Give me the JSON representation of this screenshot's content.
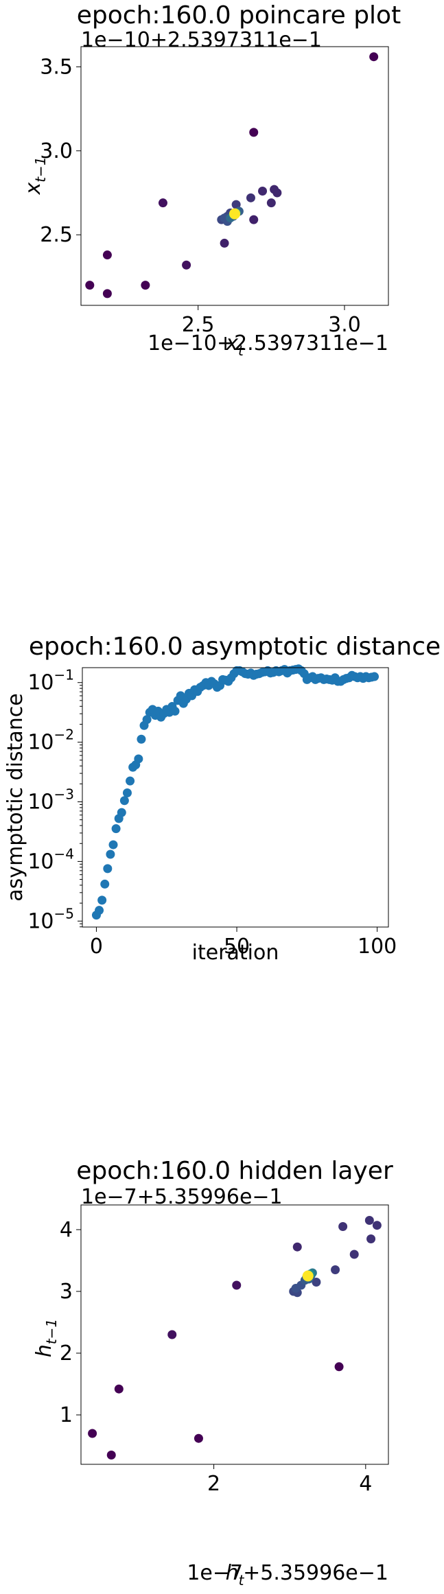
{
  "chart_data": [
    {
      "type": "scatter",
      "title": "epoch:160.0 poincare plot",
      "offset_y": "1e−10+2.5397311e−1",
      "offset_x": "1e−10+2.5397311e−1",
      "xlabel": "x_t",
      "ylabel": "x_{t−1}",
      "xlim": [
        2.1,
        3.15
      ],
      "ylim": [
        2.08,
        3.62
      ],
      "xticks": [
        2.5,
        3.0
      ],
      "xtick_labels": [
        "2.5",
        "3.0"
      ],
      "yticks": [
        2.5,
        3.0,
        3.5
      ],
      "ytick_labels": [
        "2.5",
        "3.0",
        "3.5"
      ],
      "color_scale": "viridis",
      "points": [
        {
          "x": 3.1,
          "y": 3.56,
          "c": 0
        },
        {
          "x": 2.69,
          "y": 3.11,
          "c": 0
        },
        {
          "x": 2.13,
          "y": 2.2,
          "c": 0
        },
        {
          "x": 2.19,
          "y": 2.15,
          "c": 0
        },
        {
          "x": 2.19,
          "y": 2.38,
          "c": 0
        },
        {
          "x": 2.32,
          "y": 2.2,
          "c": 0
        },
        {
          "x": 2.46,
          "y": 2.32,
          "c": 0.05
        },
        {
          "x": 2.38,
          "y": 2.69,
          "c": 0.05
        },
        {
          "x": 2.59,
          "y": 2.45,
          "c": 0.1
        },
        {
          "x": 2.69,
          "y": 2.59,
          "c": 0.1
        },
        {
          "x": 2.72,
          "y": 2.76,
          "c": 0.12
        },
        {
          "x": 2.75,
          "y": 2.69,
          "c": 0.12
        },
        {
          "x": 2.76,
          "y": 2.77,
          "c": 0.12
        },
        {
          "x": 2.77,
          "y": 2.75,
          "c": 0.12
        },
        {
          "x": 2.68,
          "y": 2.72,
          "c": 0.15
        },
        {
          "x": 2.63,
          "y": 2.68,
          "c": 0.18
        },
        {
          "x": 2.61,
          "y": 2.63,
          "c": 0.2
        },
        {
          "x": 2.6,
          "y": 2.61,
          "c": 0.22
        },
        {
          "x": 2.58,
          "y": 2.59,
          "c": 0.22
        },
        {
          "x": 2.59,
          "y": 2.6,
          "c": 0.25
        },
        {
          "x": 2.6,
          "y": 2.58,
          "c": 0.25
        },
        {
          "x": 2.62,
          "y": 2.61,
          "c": 0.3
        },
        {
          "x": 2.64,
          "y": 2.64,
          "c": 0.3
        },
        {
          "x": 2.61,
          "y": 2.6,
          "c": 0.35
        },
        {
          "x": 2.62,
          "y": 2.62,
          "c": 0.45
        },
        {
          "x": 2.63,
          "y": 2.63,
          "c": 0.6
        },
        {
          "x": 2.625,
          "y": 2.625,
          "c": 1.0
        }
      ]
    },
    {
      "type": "scatter",
      "title": "epoch:160.0 asymptotic distance",
      "xlabel": "iteration",
      "ylabel": "asymptotic distance",
      "yscale": "log",
      "xlim": [
        -5,
        104
      ],
      "ylim_log10": [
        -5.1,
        -0.75
      ],
      "xticks": [
        0,
        50,
        100
      ],
      "xtick_labels": [
        "0",
        "50",
        "100"
      ],
      "yticks_log10": [
        -5,
        -4,
        -3,
        -2,
        -1
      ],
      "color": "#1f77b4",
      "x": [
        0,
        1,
        2,
        3,
        4,
        5,
        6,
        7,
        8,
        9,
        10,
        11,
        12,
        13,
        14,
        15,
        16,
        17,
        18,
        19,
        20,
        21,
        22,
        23,
        24,
        25,
        26,
        27,
        28,
        29,
        30,
        31,
        32,
        33,
        34,
        35,
        36,
        37,
        38,
        39,
        40,
        41,
        42,
        43,
        44,
        45,
        46,
        47,
        48,
        49,
        50,
        51,
        52,
        53,
        54,
        55,
        56,
        57,
        58,
        59,
        60,
        61,
        62,
        63,
        64,
        65,
        66,
        67,
        68,
        69,
        70,
        71,
        72,
        73,
        74,
        75,
        76,
        77,
        78,
        79,
        80,
        81,
        82,
        83,
        84,
        85,
        86,
        87,
        88,
        89,
        90,
        91,
        92,
        93,
        94,
        95,
        96,
        97,
        98,
        99
      ],
      "y_log10": [
        -4.9,
        -4.82,
        -4.65,
        -4.38,
        -4.12,
        -3.88,
        -3.72,
        -3.45,
        -3.28,
        -3.18,
        -2.98,
        -2.85,
        -2.65,
        -2.42,
        -2.38,
        -2.28,
        -1.95,
        -1.72,
        -1.62,
        -1.5,
        -1.45,
        -1.55,
        -1.48,
        -1.58,
        -1.52,
        -1.45,
        -1.5,
        -1.4,
        -1.48,
        -1.3,
        -1.22,
        -1.35,
        -1.28,
        -1.18,
        -1.22,
        -1.12,
        -1.15,
        -1.08,
        -1.05,
        -1.0,
        -1.05,
        -0.98,
        -1.02,
        -1.08,
        -1.05,
        -0.95,
        -0.96,
        -0.98,
        -0.92,
        -0.85,
        -0.8,
        -0.8,
        -0.82,
        -0.85,
        -0.86,
        -0.84,
        -0.88,
        -0.86,
        -0.85,
        -0.83,
        -0.82,
        -0.8,
        -0.84,
        -0.83,
        -0.8,
        -0.82,
        -0.8,
        -0.78,
        -0.84,
        -0.8,
        -0.79,
        -0.78,
        -0.77,
        -0.8,
        -0.85,
        -0.95,
        -0.92,
        -0.9,
        -0.95,
        -0.93,
        -0.92,
        -0.95,
        -0.94,
        -0.95,
        -0.96,
        -0.92,
        -0.98,
        -0.98,
        -0.95,
        -0.93,
        -0.92,
        -0.88,
        -0.9,
        -0.92,
        -0.9,
        -0.93,
        -0.9,
        -0.92,
        -0.91,
        -0.9
      ]
    },
    {
      "type": "scatter",
      "title": "epoch:160.0 hidden layer",
      "offset_y": "1e−7+5.35996e−1",
      "offset_x": "1e−7+5.35996e−1",
      "xlabel": "h_t",
      "ylabel": "h_{t−1}",
      "xlim": [
        0.25,
        4.3
      ],
      "ylim": [
        0.2,
        4.4
      ],
      "xticks": [
        2,
        4
      ],
      "xtick_labels": [
        "2",
        "4"
      ],
      "yticks": [
        1,
        2,
        3,
        4
      ],
      "ytick_labels": [
        "1",
        "2",
        "3",
        "4"
      ],
      "color_scale": "viridis",
      "points": [
        {
          "x": 0.4,
          "y": 0.7,
          "c": 0
        },
        {
          "x": 0.65,
          "y": 0.35,
          "c": 0
        },
        {
          "x": 0.75,
          "y": 1.42,
          "c": 0
        },
        {
          "x": 1.8,
          "y": 0.62,
          "c": 0
        },
        {
          "x": 3.65,
          "y": 1.78,
          "c": 0
        },
        {
          "x": 1.45,
          "y": 2.3,
          "c": 0.05
        },
        {
          "x": 2.3,
          "y": 3.1,
          "c": 0.05
        },
        {
          "x": 3.1,
          "y": 3.72,
          "c": 0.12
        },
        {
          "x": 3.7,
          "y": 4.05,
          "c": 0.15
        },
        {
          "x": 4.05,
          "y": 4.15,
          "c": 0.15
        },
        {
          "x": 4.15,
          "y": 4.07,
          "c": 0.15
        },
        {
          "x": 4.07,
          "y": 3.85,
          "c": 0.15
        },
        {
          "x": 3.85,
          "y": 3.6,
          "c": 0.15
        },
        {
          "x": 3.6,
          "y": 3.35,
          "c": 0.18
        },
        {
          "x": 3.35,
          "y": 3.15,
          "c": 0.2
        },
        {
          "x": 3.05,
          "y": 3.0,
          "c": 0.22
        },
        {
          "x": 3.1,
          "y": 2.98,
          "c": 0.22
        },
        {
          "x": 3.08,
          "y": 3.05,
          "c": 0.25
        },
        {
          "x": 3.15,
          "y": 3.1,
          "c": 0.25
        },
        {
          "x": 3.2,
          "y": 3.18,
          "c": 0.28
        },
        {
          "x": 3.22,
          "y": 3.22,
          "c": 0.3
        },
        {
          "x": 3.25,
          "y": 3.2,
          "c": 0.32
        },
        {
          "x": 3.28,
          "y": 3.26,
          "c": 0.35
        },
        {
          "x": 3.3,
          "y": 3.3,
          "c": 0.4
        },
        {
          "x": 3.27,
          "y": 3.28,
          "c": 0.5
        },
        {
          "x": 3.24,
          "y": 3.25,
          "c": 1.0
        }
      ]
    }
  ]
}
